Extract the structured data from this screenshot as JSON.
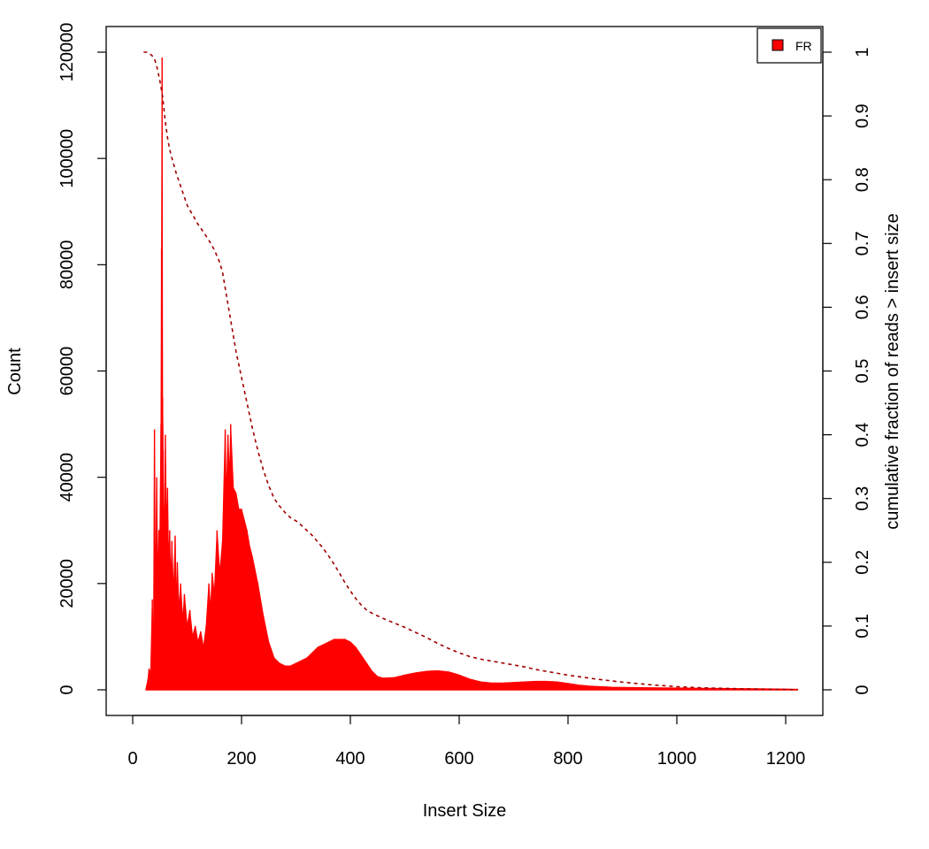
{
  "chart_data": {
    "type": "area",
    "xlabel": "Insert Size",
    "ylabel": "Count",
    "ylabel_right": "cumulative fraction of reads > insert size",
    "xlim": [
      0,
      1250
    ],
    "ylim": [
      0,
      120000
    ],
    "ylim_right": [
      0,
      1
    ],
    "x_ticks": [
      0,
      200,
      400,
      600,
      800,
      1000,
      1200
    ],
    "y_ticks": [
      0,
      20000,
      40000,
      60000,
      80000,
      100000,
      120000
    ],
    "y_ticks_right": [
      0,
      0.1,
      0.2,
      0.3,
      0.4,
      0.5,
      0.6,
      0.7,
      0.8,
      0.9,
      1
    ],
    "grid": false,
    "legend": {
      "position": "top-right",
      "entries": [
        {
          "label": "FR",
          "color": "#ff0000"
        }
      ]
    },
    "series": [
      {
        "name": "FR",
        "kind": "histogram",
        "color": "#ff0000",
        "x": [
          24,
          28,
          30,
          33,
          36,
          38,
          40,
          42,
          44,
          46,
          48,
          50,
          52,
          53,
          54,
          55,
          56,
          58,
          60,
          62,
          64,
          66,
          68,
          70,
          72,
          75,
          78,
          80,
          82,
          85,
          88,
          92,
          95,
          100,
          105,
          110,
          115,
          120,
          125,
          130,
          135,
          140,
          143,
          146,
          150,
          155,
          160,
          165,
          170,
          172,
          175,
          178,
          180,
          185,
          190,
          195,
          200,
          205,
          210,
          215,
          220,
          230,
          240,
          250,
          260,
          270,
          280,
          290,
          300,
          310,
          320,
          330,
          340,
          350,
          360,
          370,
          380,
          390,
          400,
          410,
          420,
          430,
          440,
          450,
          460,
          480,
          500,
          520,
          540,
          560,
          580,
          600,
          620,
          640,
          660,
          680,
          700,
          720,
          740,
          760,
          780,
          800,
          820,
          840,
          860,
          880,
          900,
          950,
          1000,
          1050,
          1100,
          1150,
          1200,
          1222
        ],
        "values": [
          0,
          2000,
          4000,
          3000,
          17000,
          5000,
          49000,
          15000,
          40000,
          20000,
          30000,
          30000,
          50000,
          83000,
          119000,
          55000,
          45000,
          25000,
          48000,
          30000,
          38000,
          24000,
          30000,
          20000,
          28000,
          18000,
          29000,
          16000,
          24000,
          15000,
          20000,
          13000,
          18000,
          12000,
          15000,
          10000,
          12000,
          9000,
          11000,
          8000,
          12000,
          20000,
          15000,
          22000,
          18000,
          30000,
          22000,
          28000,
          49000,
          36000,
          48000,
          40000,
          50000,
          38000,
          37000,
          34000,
          34000,
          32000,
          30000,
          27000,
          25000,
          20000,
          14000,
          9000,
          6000,
          5000,
          4500,
          4500,
          5000,
          5500,
          6000,
          7000,
          8000,
          8500,
          9000,
          9500,
          9500,
          9500,
          9000,
          8000,
          6500,
          5000,
          3500,
          2500,
          2200,
          2300,
          2800,
          3200,
          3500,
          3600,
          3400,
          2800,
          2000,
          1500,
          1300,
          1300,
          1400,
          1500,
          1600,
          1600,
          1500,
          1200,
          900,
          700,
          600,
          500,
          450,
          400,
          350,
          300,
          250,
          200,
          150,
          100
        ]
      },
      {
        "name": "cumulative",
        "kind": "cumulative",
        "axis": "right",
        "color": "#a00000",
        "x": [
          20,
          26,
          30,
          35,
          40,
          45,
          50,
          55,
          60,
          65,
          70,
          80,
          90,
          100,
          110,
          120,
          130,
          140,
          150,
          155,
          160,
          165,
          170,
          180,
          190,
          200,
          210,
          220,
          230,
          240,
          250,
          260,
          270,
          280,
          290,
          300,
          310,
          320,
          330,
          340,
          350,
          360,
          370,
          380,
          390,
          400,
          410,
          420,
          430,
          440,
          450,
          460,
          480,
          500,
          520,
          540,
          560,
          580,
          600,
          620,
          640,
          660,
          680,
          700,
          720,
          740,
          760,
          780,
          800,
          850,
          900,
          950,
          1000,
          1050,
          1100,
          1150,
          1200,
          1222
        ],
        "values": [
          1,
          1,
          0.998,
          0.995,
          0.99,
          0.975,
          0.955,
          0.93,
          0.89,
          0.86,
          0.84,
          0.81,
          0.785,
          0.76,
          0.745,
          0.73,
          0.718,
          0.705,
          0.69,
          0.68,
          0.67,
          0.655,
          0.63,
          0.58,
          0.53,
          0.49,
          0.45,
          0.41,
          0.375,
          0.345,
          0.32,
          0.3,
          0.288,
          0.278,
          0.27,
          0.265,
          0.258,
          0.25,
          0.242,
          0.232,
          0.222,
          0.21,
          0.197,
          0.183,
          0.168,
          0.155,
          0.143,
          0.133,
          0.125,
          0.12,
          0.116,
          0.112,
          0.105,
          0.098,
          0.09,
          0.082,
          0.073,
          0.065,
          0.058,
          0.052,
          0.048,
          0.045,
          0.042,
          0.039,
          0.036,
          0.032,
          0.029,
          0.026,
          0.023,
          0.017,
          0.012,
          0.008,
          0.005,
          0.003,
          0.002,
          0.001,
          0.0005,
          0
        ]
      }
    ]
  }
}
